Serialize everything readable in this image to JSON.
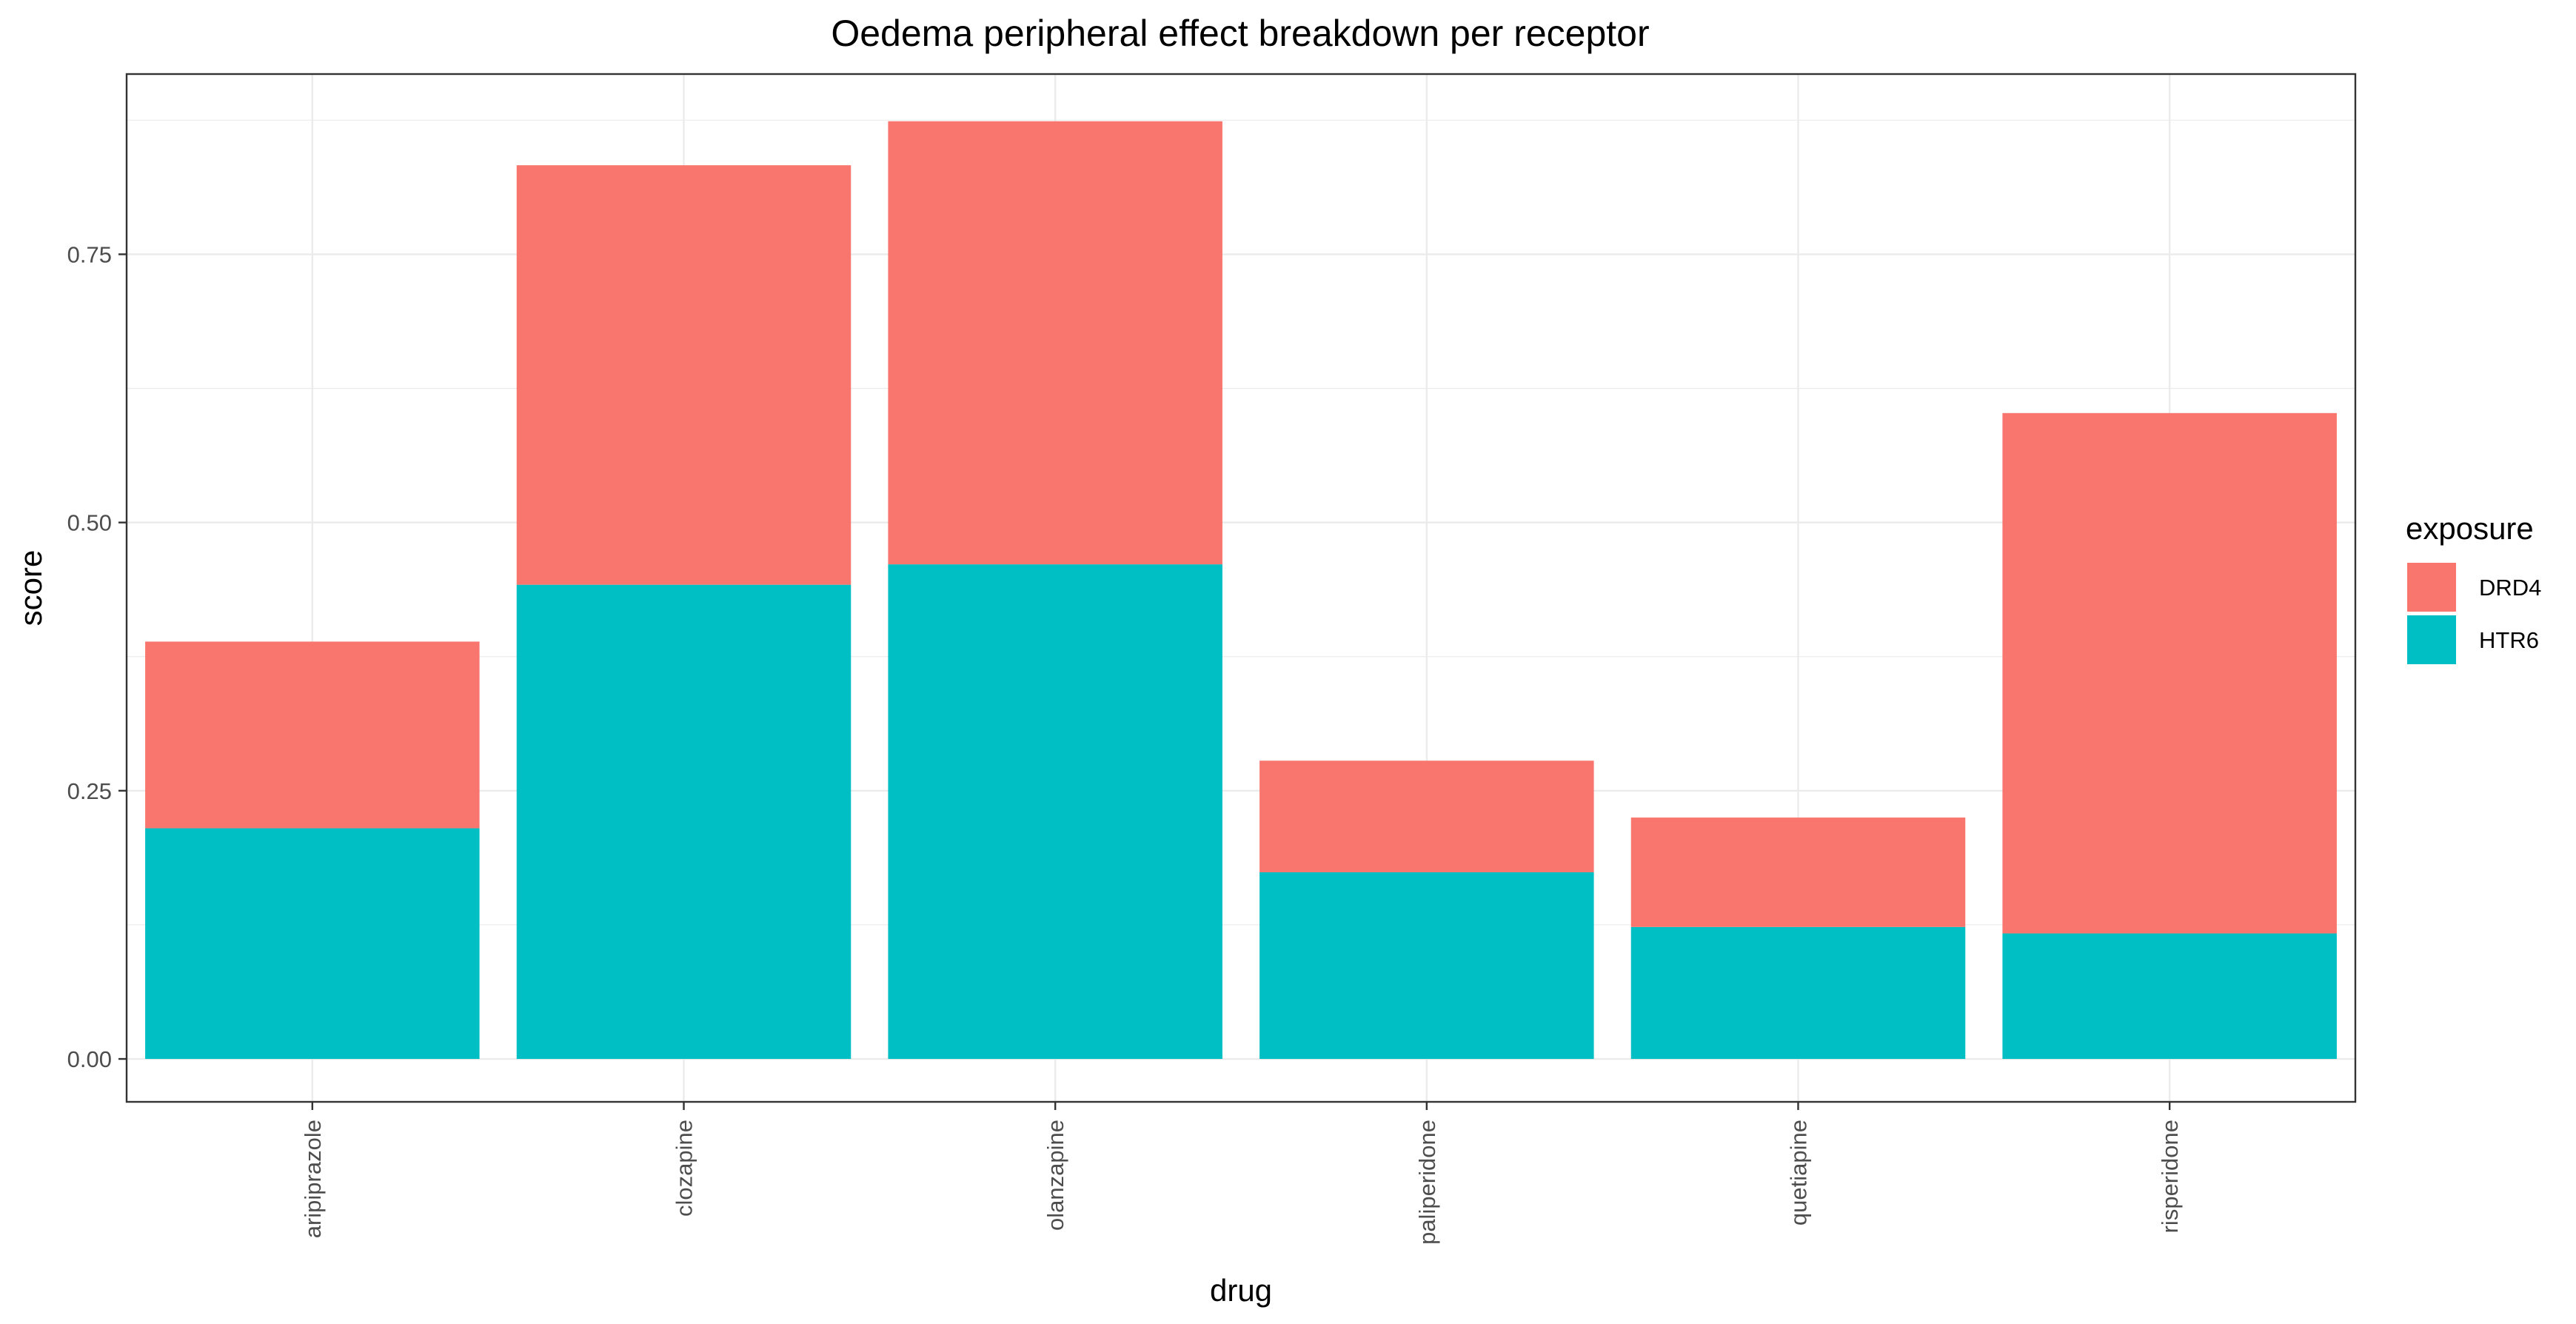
{
  "chart_data": {
    "type": "bar",
    "stacked": true,
    "title": "Oedema peripheral effect breakdown per receptor",
    "xlabel": "drug",
    "ylabel": "score",
    "categories": [
      "aripiprazole",
      "clozapine",
      "olanzapine",
      "paliperidone",
      "quetiapine",
      "risperidone"
    ],
    "series": [
      {
        "name": "HTR6",
        "color": "#00BFC4",
        "values": [
          0.215,
          0.442,
          0.461,
          0.174,
          0.123,
          0.117
        ]
      },
      {
        "name": "DRD4",
        "color": "#F8766D",
        "values": [
          0.174,
          0.391,
          0.413,
          0.104,
          0.102,
          0.485
        ]
      }
    ],
    "ylim": [
      -0.04,
      0.918
    ],
    "yticks": [
      0,
      0.25,
      0.5,
      0.75
    ],
    "ytick_labels": [
      "0.00",
      "0.25",
      "0.50",
      "0.75"
    ],
    "grid": true,
    "legend": {
      "title": "exposure",
      "position": "right",
      "entries": [
        {
          "label": "DRD4",
          "color": "#F8766D"
        },
        {
          "label": "HTR6",
          "color": "#00BFC4"
        }
      ]
    }
  }
}
